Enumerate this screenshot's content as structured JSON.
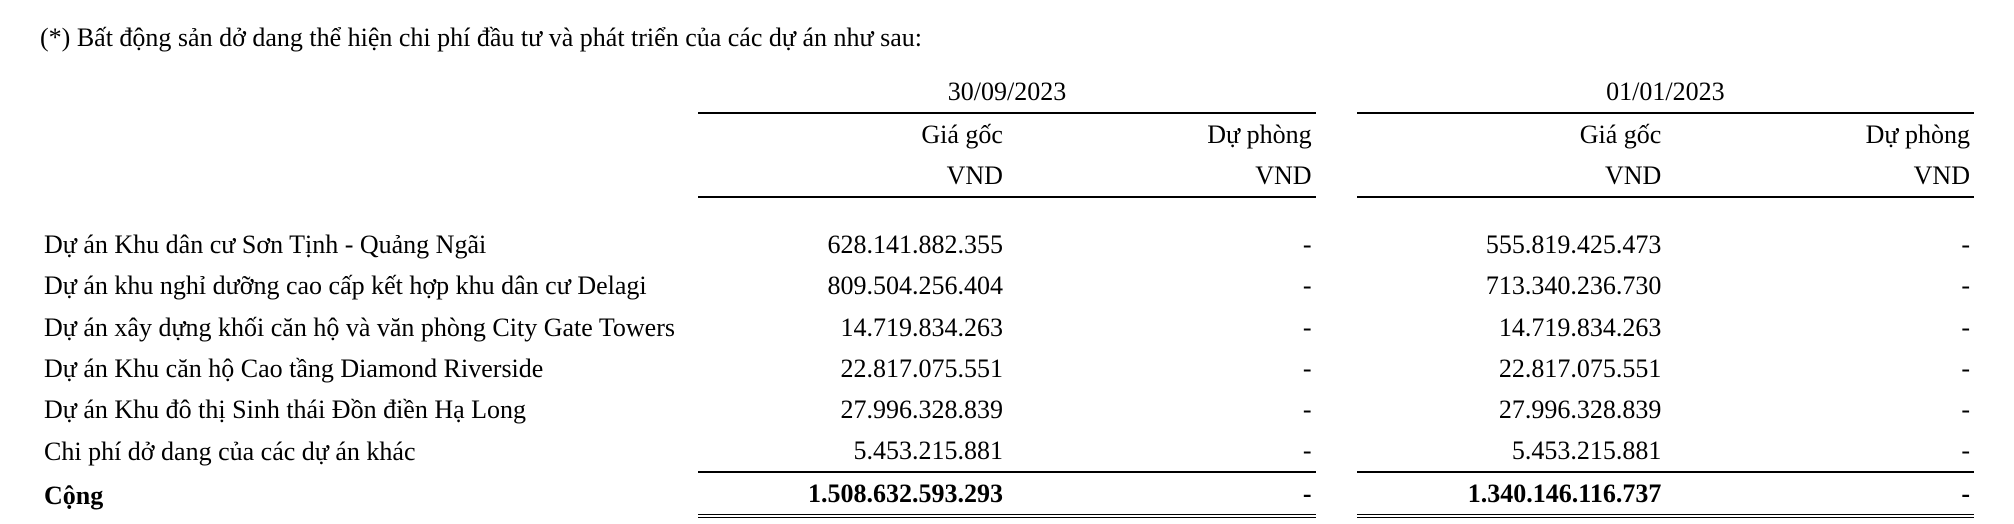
{
  "caption": "(*) Bất động sản dở dang thể hiện chi phí đầu tư và phát triển của các dự án như sau:",
  "periods": {
    "p1_date": "30/09/2023",
    "p2_date": "01/01/2023"
  },
  "headers": {
    "cost": "Giá gốc",
    "prov": "Dự phòng",
    "ccy": "VND"
  },
  "rows": [
    {
      "label": "Dự án Khu dân cư Sơn Tịnh - Quảng Ngãi",
      "p1_cost": "628.141.882.355",
      "p1_prov": "-",
      "p2_cost": "555.819.425.473",
      "p2_prov": "-"
    },
    {
      "label": "Dự án khu nghỉ dưỡng cao cấp kết hợp khu dân cư Delagi",
      "p1_cost": "809.504.256.404",
      "p1_prov": "-",
      "p2_cost": "713.340.236.730",
      "p2_prov": "-"
    },
    {
      "label": "Dự án xây dựng khối căn hộ và văn phòng City Gate Towers",
      "p1_cost": "14.719.834.263",
      "p1_prov": "-",
      "p2_cost": "14.719.834.263",
      "p2_prov": "-"
    },
    {
      "label": "Dự án Khu căn hộ Cao tầng Diamond Riverside",
      "p1_cost": "22.817.075.551",
      "p1_prov": "-",
      "p2_cost": "22.817.075.551",
      "p2_prov": "-"
    },
    {
      "label": "Dự án Khu đô thị Sinh thái Đồn điền Hạ Long",
      "p1_cost": "27.996.328.839",
      "p1_prov": "-",
      "p2_cost": "27.996.328.839",
      "p2_prov": "-"
    },
    {
      "label": "Chi phí dở dang của các dự án khác",
      "p1_cost": "5.453.215.881",
      "p1_prov": "-",
      "p2_cost": "5.453.215.881",
      "p2_prov": "-"
    }
  ],
  "total": {
    "label": "Cộng",
    "p1_cost": "1.508.632.593.293",
    "p1_prov": "-",
    "p2_cost": "1.340.146.116.737",
    "p2_prov": "-"
  },
  "style": {
    "font_family": "Times New Roman",
    "font_size_pt": 20,
    "text_color": "#000000",
    "background_color": "#ffffff",
    "rule_color": "#000000"
  }
}
